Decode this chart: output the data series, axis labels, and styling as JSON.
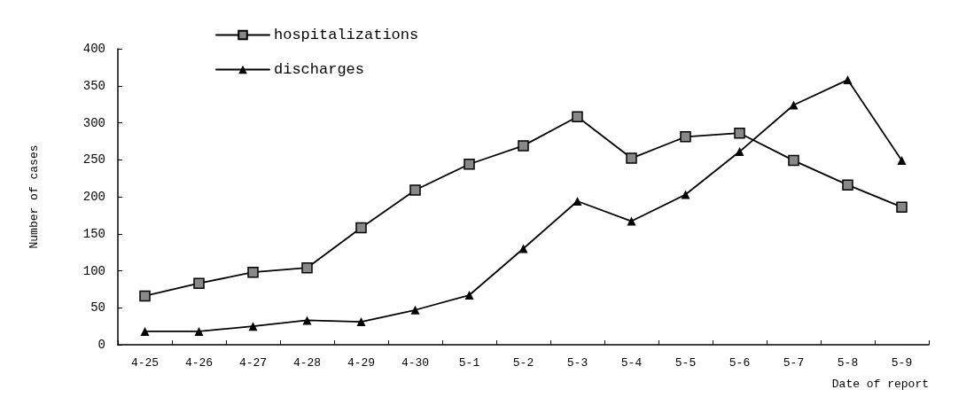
{
  "chart_data": {
    "type": "line",
    "xlabel": "Date of report",
    "ylabel": "Number of cases",
    "categories": [
      "4-25",
      "4-26",
      "4-27",
      "4-28",
      "4-29",
      "4-30",
      "5-1",
      "5-2",
      "5-3",
      "5-4",
      "5-5",
      "5-6",
      "5-7",
      "5-8",
      "5-9"
    ],
    "series": [
      {
        "name": "hospitalizations",
        "color": "#000000",
        "marker": "square",
        "values": [
          66,
          83,
          98,
          104,
          158,
          209,
          244,
          269,
          308,
          252,
          281,
          286,
          249,
          216,
          186
        ]
      },
      {
        "name": "discharges",
        "color": "#000000",
        "marker": "triangle",
        "values": [
          18,
          18,
          25,
          33,
          31,
          47,
          67,
          130,
          194,
          167,
          203,
          261,
          324,
          358,
          249
        ]
      }
    ],
    "ylim": [
      0,
      400
    ],
    "yticks": [
      0,
      50,
      100,
      150,
      200,
      250,
      300,
      350,
      400
    ],
    "grid": false,
    "legend": "top left",
    "line_style": "solid"
  }
}
